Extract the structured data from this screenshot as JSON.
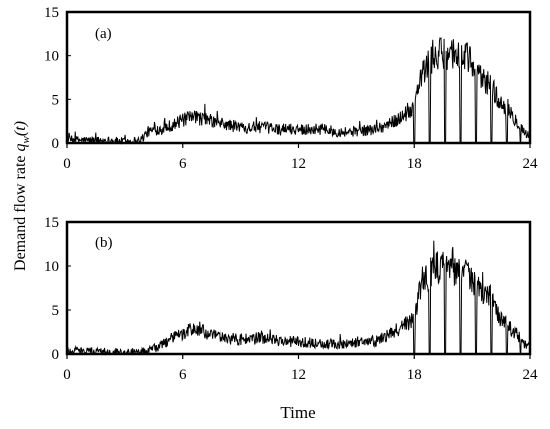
{
  "figure": {
    "ylabel_main": "Demand flow rate ",
    "ylabel_var": "q",
    "ylabel_sub": "w",
    "ylabel_arg": "(t)",
    "xlabel": "Time"
  },
  "chart_data": [
    {
      "type": "line",
      "panel_label": "(a)",
      "xlabel": "",
      "ylabel": "",
      "xlim": [
        0,
        24
      ],
      "ylim": [
        0,
        15
      ],
      "xticks": [
        "0",
        "6",
        "12",
        "18",
        "24"
      ],
      "yticks": [
        "0",
        "5",
        "10",
        "15"
      ],
      "grid": false,
      "series": [
        {
          "noise": 1.2,
          "x": [
            0,
            1,
            2,
            3,
            3.8,
            4.2,
            5,
            5.5,
            6,
            6.5,
            7,
            7.5,
            8,
            9,
            10,
            11,
            12,
            13,
            14,
            15,
            16,
            16.5,
            17,
            17.5,
            18,
            18.3,
            18.8,
            19.2,
            19.8,
            20.2,
            20.8,
            21.2,
            21.6,
            22,
            22.4,
            22.8,
            23.3,
            23.7,
            24
          ],
          "y": [
            0.4,
            0.3,
            0.3,
            0.2,
            0.3,
            1.3,
            1.7,
            2.1,
            2.6,
            2.9,
            2.8,
            2.5,
            2.2,
            1.8,
            1.8,
            1.6,
            1.6,
            1.6,
            1.3,
            1.3,
            1.6,
            2.0,
            2.5,
            3.3,
            4.0,
            7.5,
            9.3,
            10.0,
            10.4,
            10.3,
            9.7,
            8.0,
            7.2,
            6.8,
            4.5,
            3.8,
            2.6,
            1.3,
            0.6
          ],
          "dips": [
            18.0,
            18.8,
            19.6,
            20.4,
            21.2,
            22.0,
            22.8,
            23.5
          ]
        }
      ]
    },
    {
      "type": "line",
      "panel_label": "(b)",
      "xlabel": "",
      "ylabel": "",
      "xlim": [
        0,
        24
      ],
      "ylim": [
        0,
        15
      ],
      "xticks": [
        "0",
        "6",
        "12",
        "18",
        "24"
      ],
      "yticks": [
        "0",
        "5",
        "10",
        "15"
      ],
      "grid": false,
      "series": [
        {
          "noise": 1.2,
          "x": [
            0,
            1,
            2,
            3,
            4,
            4.8,
            5.3,
            6,
            6.5,
            7,
            7.5,
            8,
            9,
            10,
            11,
            12,
            13,
            14,
            15,
            16,
            16.5,
            17,
            17.5,
            18,
            18.3,
            18.8,
            19.2,
            19.8,
            20.2,
            20.8,
            21.2,
            21.6,
            22,
            22.4,
            22.8,
            23.3,
            23.7,
            24
          ],
          "y": [
            0.4,
            0.3,
            0.3,
            0.2,
            0.3,
            0.8,
            1.7,
            2.2,
            2.9,
            2.6,
            2.1,
            1.9,
            1.6,
            1.8,
            1.5,
            1.4,
            1.2,
            1.1,
            1.3,
            1.5,
            1.9,
            2.6,
            3.3,
            4.2,
            7.5,
            9.2,
            9.8,
            9.8,
            9.5,
            9.2,
            7.5,
            6.8,
            6.3,
            4.3,
            3.3,
            2.3,
            1.2,
            0.9
          ],
          "dips": [
            18.0,
            18.8,
            19.6,
            20.4,
            21.2,
            22.0,
            22.8,
            23.5
          ]
        }
      ]
    }
  ]
}
